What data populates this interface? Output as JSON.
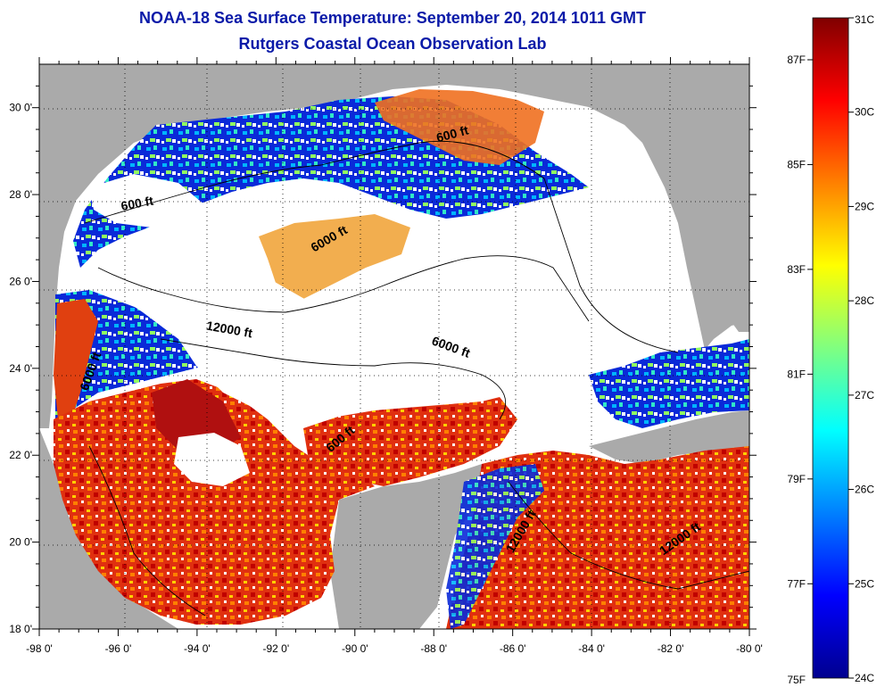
{
  "title": "NOAA-18 Sea Surface Temperature:  September 20, 2014 1011 GMT",
  "subtitle": "Rutgers Coastal Ocean Observation Lab",
  "map": {
    "lon_range": [
      -98,
      -80
    ],
    "lat_range": [
      18,
      31
    ],
    "x_ticks": [
      "-98 0'",
      "-96 0'",
      "-94 0'",
      "-92 0'",
      "-90 0'",
      "-88 0'",
      "-86 0'",
      "-84 0'",
      "-82 0'",
      "-80 0'"
    ],
    "y_ticks": [
      "30 0'",
      "28 0'",
      "26 0'",
      "24 0'",
      "22 0'",
      "20 0'",
      "18 0'"
    ],
    "land_color": "#aaaaaa",
    "cloud_color": "#ffffff",
    "contour_labels": [
      {
        "text": "600 ft",
        "lon": -95.5,
        "lat": 27.7,
        "angle": -10
      },
      {
        "text": "600 ft",
        "lon": -87.5,
        "lat": 29.3,
        "angle": -15
      },
      {
        "text": "6000 ft",
        "lon": -90.6,
        "lat": 26.9,
        "angle": -30
      },
      {
        "text": "12000 ft",
        "lon": -93.2,
        "lat": 24.8,
        "angle": 10
      },
      {
        "text": "6000 ft",
        "lon": -87.6,
        "lat": 24.4,
        "angle": 20
      },
      {
        "text": "6000 ft",
        "lon": -96.6,
        "lat": 23.9,
        "angle": -70
      },
      {
        "text": "600 ft",
        "lon": -90.3,
        "lat": 22.3,
        "angle": -40
      },
      {
        "text": "12000 ft",
        "lon": -85.7,
        "lat": 20.2,
        "angle": -60
      },
      {
        "text": "12000 ft",
        "lon": -81.7,
        "lat": 20.0,
        "angle": -35
      }
    ]
  },
  "colorbar": {
    "c_min": 24,
    "c_max": 31,
    "celsius_labels": [
      "31C",
      "30C",
      "29C",
      "28C",
      "27C",
      "26C",
      "25C",
      "24C"
    ],
    "fahrenheit_labels": [
      "87F",
      "85F",
      "83F",
      "81F",
      "79F",
      "77F",
      "75F"
    ],
    "colors": [
      "#00008f",
      "#0000ff",
      "#0080ff",
      "#00ffff",
      "#80ff80",
      "#ffff00",
      "#ff8000",
      "#ff0000",
      "#800000"
    ]
  }
}
